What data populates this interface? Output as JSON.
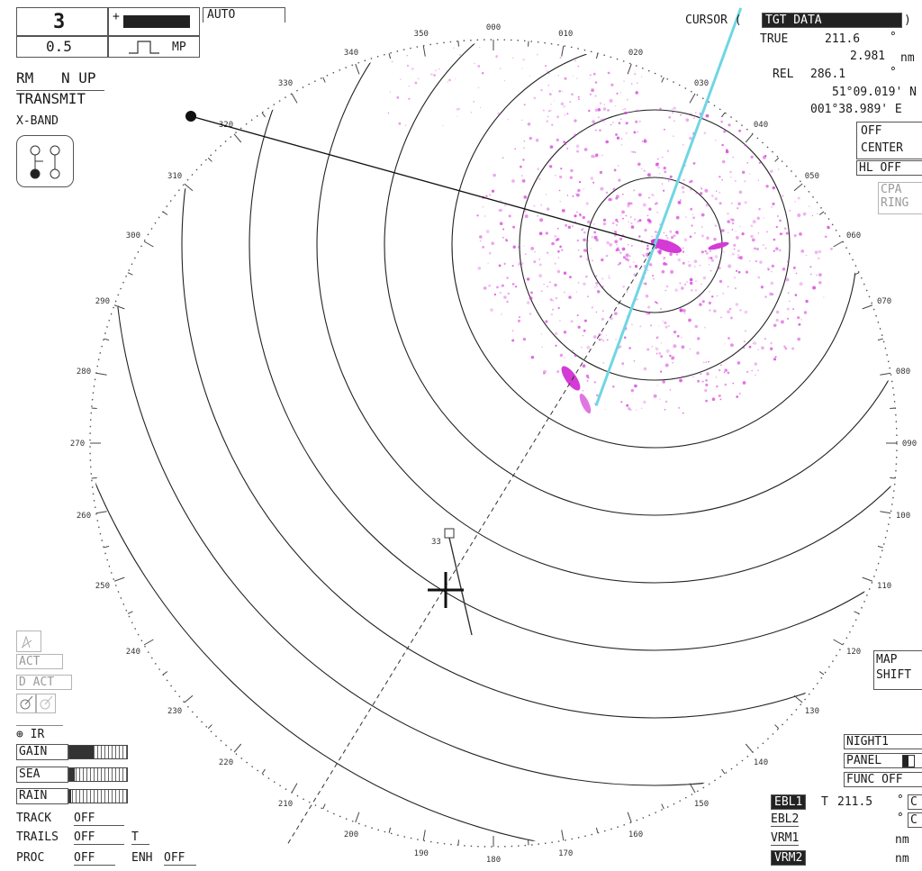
{
  "range": {
    "value": "3",
    "rings": "0.5",
    "pulse": "MP",
    "mode": "AUTO"
  },
  "presentation": {
    "motion": "RM",
    "orientation": "N UP",
    "status": "TRANSMIT",
    "band": "X-BAND"
  },
  "cursor": {
    "label": "CURSOR (",
    "mode": "TGT DATA",
    "close": ")",
    "true_label": "TRUE",
    "true_bearing": "211.6",
    "deg": "°",
    "range": "2.981",
    "range_unit": "nm",
    "rel_label": "REL",
    "rel_bearing": "286.1",
    "lat": "51°09.019' N",
    "lon": "001°38.989' E"
  },
  "right_controls": {
    "off": "OFF",
    "center": "CENTER",
    "hl": "HL OFF",
    "cpa": "CPA",
    "ring": "RING"
  },
  "map_shift": {
    "map": "MAP",
    "shift": "SHIFT"
  },
  "panel": {
    "night": "NIGHT1",
    "panel": "PANEL",
    "func": "FUNC OFF"
  },
  "bearing_lines": {
    "ebl1_label": "EBL1",
    "ebl1_t": "T",
    "ebl1_value": "211.5",
    "ebl1_deg": "°",
    "ebl1_c": "C",
    "ebl2_label": "EBL2",
    "ebl2_deg": "°",
    "ebl2_c": "C",
    "vrm1_label": "VRM1",
    "vrm1_unit": "nm",
    "vrm2_label": "VRM2",
    "vrm2_unit": "nm"
  },
  "left_tools": {
    "act": "ACT",
    "dact": "D ACT",
    "ir": "IR"
  },
  "adjust": {
    "gain_label": "GAIN",
    "gain_level": 0.42,
    "sea_label": "SEA",
    "sea_level": 0.1,
    "rain_label": "RAIN",
    "rain_level": 0.03
  },
  "track": {
    "track_label": "TRACK",
    "track_value": "OFF",
    "trails_label": "TRAILS",
    "trails_value": "OFF",
    "trails_mode": "T",
    "proc_label": "PROC",
    "proc_value": "OFF",
    "enh_label": "ENH",
    "enh_value": "OFF"
  },
  "target": {
    "label": "33"
  },
  "bearing_scale": {
    "labels": [
      "000",
      "010",
      "020",
      "030",
      "040",
      "050",
      "060",
      "070",
      "080",
      "090",
      "100",
      "110",
      "120",
      "130",
      "140",
      "150",
      "160",
      "170",
      "180",
      "190",
      "200",
      "210",
      "220",
      "230",
      "240",
      "250",
      "260",
      "270",
      "280",
      "290",
      "300",
      "310",
      "320",
      "330",
      "340",
      "350"
    ]
  },
  "colors": {
    "echo": "#d43ad6",
    "heading_line": "#6fd6e3",
    "ink": "#222222"
  }
}
